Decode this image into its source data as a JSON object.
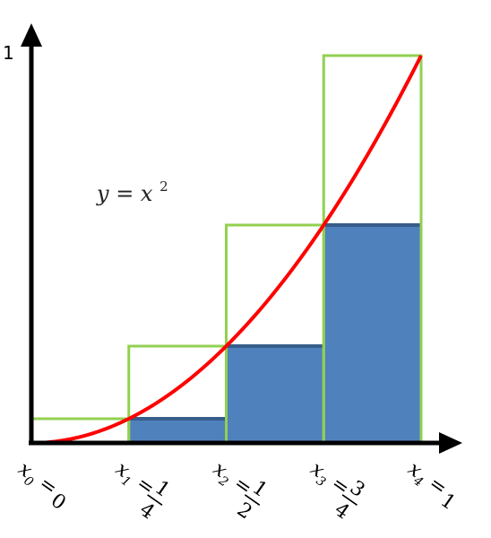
{
  "chart_data": {
    "type": "bar",
    "function_label": "y = x²",
    "function_label_base": "y = x",
    "function_label_exp": "2",
    "y_tick_label": "1",
    "ylim": [
      0,
      1
    ],
    "xlim": [
      0,
      1
    ],
    "curve": {
      "name": "y = x^2",
      "color": "#ff0000"
    },
    "partition": [
      0,
      0.25,
      0.5,
      0.75,
      1
    ],
    "lower_sum": {
      "color": "#4f81bd",
      "edge_color": "#385d8a",
      "intervals": [
        [
          0,
          0.25
        ],
        [
          0.25,
          0.5
        ],
        [
          0.5,
          0.75
        ],
        [
          0.75,
          1
        ]
      ],
      "values": [
        0,
        0.0625,
        0.25,
        0.5625
      ]
    },
    "upper_sum": {
      "color": "#92d050",
      "intervals": [
        [
          0,
          0.25
        ],
        [
          0.25,
          0.5
        ],
        [
          0.5,
          0.75
        ],
        [
          0.75,
          1
        ]
      ],
      "values": [
        0.0625,
        0.25,
        0.5625,
        1
      ]
    },
    "x_tick_labels": [
      {
        "var": "x",
        "sub": "0",
        "rel": "=",
        "num": "0",
        "den": ""
      },
      {
        "var": "x",
        "sub": "1",
        "rel": "=",
        "num": "1",
        "den": "4"
      },
      {
        "var": "x",
        "sub": "2",
        "rel": "=",
        "num": "1",
        "den": "2"
      },
      {
        "var": "x",
        "sub": "3",
        "rel": "=",
        "num": "3",
        "den": "4"
      },
      {
        "var": "x",
        "sub": "4",
        "rel": "=",
        "num": "1",
        "den": ""
      }
    ]
  }
}
